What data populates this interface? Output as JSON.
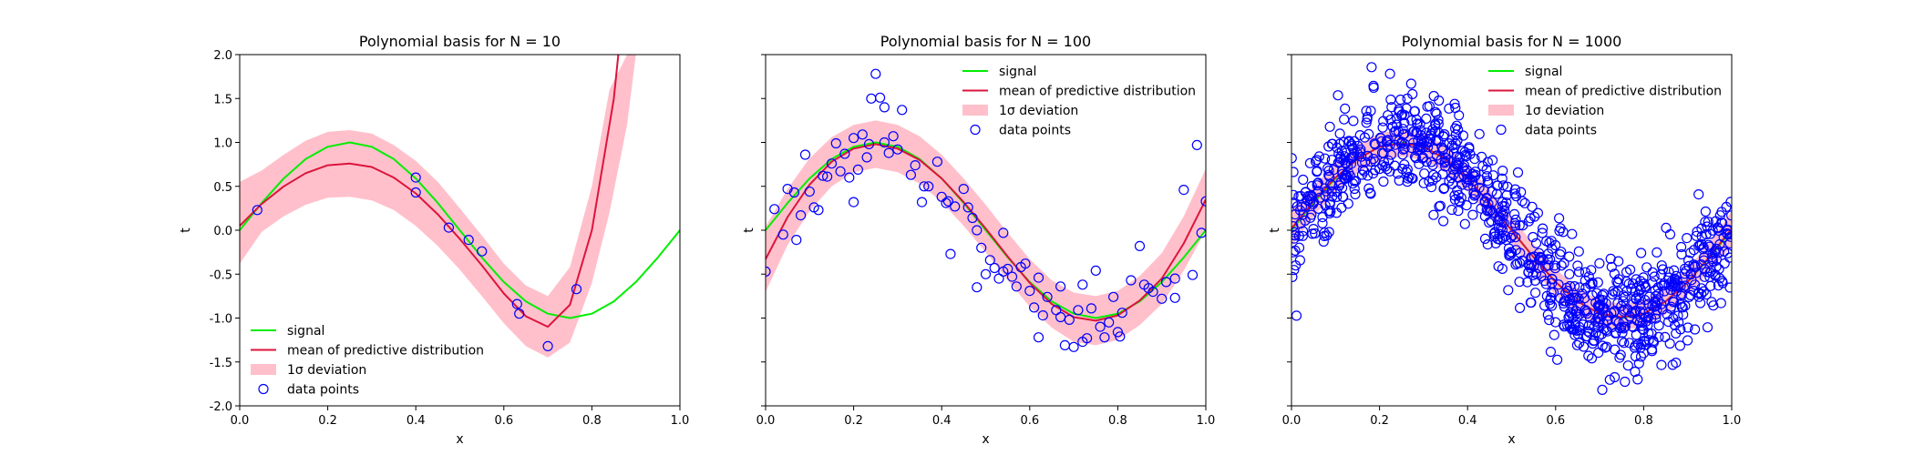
{
  "colors": {
    "signal": "#00ee00",
    "mean": "#dc143c",
    "deviation": "#ffc0cb",
    "points": "#0000ff",
    "axes": "#000000"
  },
  "chart_data": [
    {
      "type": "line",
      "title": "Polynomial basis for N = 10",
      "xlabel": "x",
      "ylabel": "t",
      "xlim": [
        0.0,
        1.0
      ],
      "ylim": [
        -2.0,
        2.0
      ],
      "xticks": [
        "0.0",
        "0.2",
        "0.4",
        "0.6",
        "0.8",
        "1.0"
      ],
      "yticks": [
        "-2.0",
        "-1.5",
        "-1.0",
        "-0.5",
        "0.0",
        "0.5",
        "1.0",
        "1.5",
        "2.0"
      ],
      "show_ytick_labels": true,
      "legend_position": "lower-left",
      "legend": [
        "signal",
        "mean of predictive distribution",
        "1σ deviation",
        "data points"
      ],
      "series": [
        {
          "name": "signal",
          "kind": "line",
          "color": "#00ee00",
          "x": [
            0.0,
            0.05,
            0.1,
            0.15,
            0.2,
            0.25,
            0.3,
            0.35,
            0.4,
            0.45,
            0.5,
            0.55,
            0.6,
            0.65,
            0.7,
            0.75,
            0.8,
            0.85,
            0.9,
            0.95,
            1.0
          ],
          "y": [
            0.0,
            0.31,
            0.59,
            0.81,
            0.95,
            1.0,
            0.95,
            0.81,
            0.59,
            0.31,
            0.0,
            -0.31,
            -0.59,
            -0.81,
            -0.95,
            -1.0,
            -0.95,
            -0.81,
            -0.59,
            -0.31,
            0.0
          ]
        },
        {
          "name": "mean of predictive distribution",
          "kind": "line",
          "color": "#dc143c",
          "x": [
            0.0,
            0.05,
            0.1,
            0.15,
            0.2,
            0.25,
            0.3,
            0.35,
            0.4,
            0.45,
            0.5,
            0.55,
            0.6,
            0.65,
            0.7,
            0.75,
            0.8,
            0.85,
            0.86
          ],
          "y": [
            0.05,
            0.3,
            0.5,
            0.65,
            0.74,
            0.76,
            0.72,
            0.6,
            0.42,
            0.18,
            -0.1,
            -0.4,
            -0.72,
            -0.98,
            -1.1,
            -0.85,
            0.0,
            1.5,
            2.0
          ]
        },
        {
          "name": "1σ deviation",
          "kind": "band",
          "color": "#ffc0cb",
          "x": [
            0.0,
            0.05,
            0.1,
            0.15,
            0.2,
            0.25,
            0.3,
            0.35,
            0.4,
            0.45,
            0.5,
            0.55,
            0.6,
            0.65,
            0.7,
            0.75,
            0.8,
            0.84,
            0.88,
            0.9,
            0.94
          ],
          "lower": [
            -0.38,
            -0.02,
            0.16,
            0.29,
            0.37,
            0.38,
            0.34,
            0.23,
            0.05,
            -0.18,
            -0.45,
            -0.75,
            -1.06,
            -1.32,
            -1.45,
            -1.28,
            -0.6,
            0.2,
            1.2,
            2.0,
            2.0
          ],
          "upper": [
            0.55,
            0.68,
            0.86,
            1.02,
            1.12,
            1.14,
            1.1,
            0.97,
            0.79,
            0.55,
            0.25,
            -0.06,
            -0.38,
            -0.63,
            -0.75,
            -0.42,
            0.5,
            1.6,
            2.0,
            2.0,
            2.0
          ]
        },
        {
          "name": "data points",
          "kind": "scatter",
          "color": "#0000ff",
          "x": [
            0.04,
            0.4,
            0.4,
            0.475,
            0.52,
            0.55,
            0.63,
            0.635,
            0.7,
            0.765
          ],
          "y": [
            0.23,
            0.6,
            0.43,
            0.03,
            -0.11,
            -0.24,
            -0.84,
            -0.95,
            -1.32,
            -0.67
          ]
        }
      ]
    },
    {
      "type": "line",
      "title": "Polynomial basis for N = 100",
      "xlabel": "x",
      "ylabel": "t",
      "xlim": [
        0.0,
        1.0
      ],
      "ylim": [
        -2.0,
        2.0
      ],
      "xticks": [
        "0.0",
        "0.2",
        "0.4",
        "0.6",
        "0.8",
        "1.0"
      ],
      "yticks": [
        "-2.0",
        "-1.5",
        "-1.0",
        "-0.5",
        "0.0",
        "0.5",
        "1.0",
        "1.5",
        "2.0"
      ],
      "show_ytick_labels": false,
      "legend_position": "upper-right",
      "legend": [
        "signal",
        "mean of predictive distribution",
        "1σ deviation",
        "data points"
      ],
      "series": [
        {
          "name": "signal",
          "kind": "line",
          "color": "#00ee00",
          "x": [
            0.0,
            0.05,
            0.1,
            0.15,
            0.2,
            0.25,
            0.3,
            0.35,
            0.4,
            0.45,
            0.5,
            0.55,
            0.6,
            0.65,
            0.7,
            0.75,
            0.8,
            0.85,
            0.9,
            0.95,
            1.0
          ],
          "y": [
            0.0,
            0.31,
            0.59,
            0.81,
            0.95,
            1.0,
            0.95,
            0.81,
            0.59,
            0.31,
            0.0,
            -0.31,
            -0.59,
            -0.81,
            -0.95,
            -1.0,
            -0.95,
            -0.81,
            -0.59,
            -0.31,
            0.0
          ]
        },
        {
          "name": "mean of predictive distribution",
          "kind": "line",
          "color": "#dc143c",
          "x": [
            0.0,
            0.05,
            0.1,
            0.15,
            0.2,
            0.25,
            0.3,
            0.35,
            0.4,
            0.45,
            0.5,
            0.55,
            0.6,
            0.65,
            0.7,
            0.75,
            0.8,
            0.85,
            0.9,
            0.95,
            1.0
          ],
          "y": [
            -0.33,
            0.15,
            0.52,
            0.78,
            0.93,
            0.98,
            0.93,
            0.8,
            0.59,
            0.32,
            0.02,
            -0.3,
            -0.6,
            -0.84,
            -0.99,
            -1.03,
            -0.97,
            -0.8,
            -0.55,
            -0.15,
            0.35
          ]
        },
        {
          "name": "1σ deviation",
          "kind": "band",
          "color": "#ffc0cb",
          "x": [
            0.0,
            0.05,
            0.1,
            0.15,
            0.2,
            0.25,
            0.3,
            0.35,
            0.4,
            0.45,
            0.5,
            0.55,
            0.6,
            0.65,
            0.7,
            0.75,
            0.8,
            0.85,
            0.9,
            0.95,
            1.0
          ],
          "lower": [
            -0.7,
            -0.17,
            0.22,
            0.5,
            0.66,
            0.71,
            0.66,
            0.53,
            0.32,
            0.05,
            -0.25,
            -0.57,
            -0.87,
            -1.11,
            -1.27,
            -1.31,
            -1.25,
            -1.08,
            -0.84,
            -0.46,
            0.0
          ],
          "upper": [
            0.04,
            0.47,
            0.82,
            1.06,
            1.2,
            1.25,
            1.2,
            1.07,
            0.86,
            0.59,
            0.29,
            -0.03,
            -0.33,
            -0.57,
            -0.71,
            -0.75,
            -0.69,
            -0.52,
            -0.26,
            0.16,
            0.7
          ]
        },
        {
          "name": "data points",
          "kind": "scatter",
          "color": "#0000ff",
          "x": [
            0.0,
            0.02,
            0.04,
            0.05,
            0.07,
            0.08,
            0.09,
            0.1,
            0.12,
            0.13,
            0.14,
            0.15,
            0.16,
            0.17,
            0.18,
            0.19,
            0.2,
            0.2,
            0.21,
            0.22,
            0.23,
            0.24,
            0.25,
            0.26,
            0.27,
            0.27,
            0.28,
            0.29,
            0.3,
            0.31,
            0.33,
            0.34,
            0.36,
            0.37,
            0.39,
            0.4,
            0.41,
            0.42,
            0.43,
            0.45,
            0.46,
            0.47,
            0.48,
            0.49,
            0.5,
            0.51,
            0.52,
            0.53,
            0.54,
            0.55,
            0.56,
            0.57,
            0.58,
            0.59,
            0.6,
            0.61,
            0.62,
            0.63,
            0.64,
            0.66,
            0.67,
            0.68,
            0.69,
            0.7,
            0.71,
            0.72,
            0.73,
            0.74,
            0.75,
            0.76,
            0.77,
            0.78,
            0.79,
            0.8,
            0.81,
            0.83,
            0.85,
            0.86,
            0.87,
            0.88,
            0.9,
            0.91,
            0.93,
            0.95,
            0.97,
            0.98,
            0.99,
            1.0,
            0.415,
            0.62,
            0.48,
            0.72,
            0.11,
            0.235,
            0.355,
            0.54,
            0.67,
            0.805,
            0.93,
            0.065
          ],
          "y": [
            -0.47,
            0.24,
            -0.05,
            0.47,
            -0.11,
            0.17,
            0.86,
            0.44,
            0.23,
            0.62,
            0.61,
            0.76,
            0.99,
            0.67,
            0.87,
            0.6,
            0.32,
            1.05,
            0.69,
            1.09,
            0.83,
            1.5,
            1.78,
            1.51,
            1.4,
            1.0,
            0.88,
            1.07,
            0.92,
            1.37,
            0.63,
            0.74,
            0.5,
            0.5,
            0.78,
            0.38,
            0.31,
            -0.27,
            0.27,
            0.47,
            0.26,
            0.14,
            0.0,
            -0.2,
            -0.5,
            -0.34,
            -0.43,
            -0.55,
            -0.03,
            -0.44,
            -0.53,
            -0.64,
            -0.42,
            -0.38,
            -0.69,
            -0.88,
            -0.54,
            -0.97,
            -0.76,
            -0.91,
            -0.64,
            -1.31,
            -1.02,
            -1.33,
            -0.91,
            -0.62,
            -1.23,
            -0.89,
            -0.46,
            -1.1,
            -1.22,
            -1.05,
            -0.76,
            -1.16,
            -0.94,
            -0.57,
            -0.18,
            -0.62,
            -0.66,
            -0.7,
            -0.78,
            -0.59,
            -0.55,
            0.46,
            -0.51,
            0.97,
            -0.03,
            0.33,
            0.33,
            -1.22,
            -0.65,
            -1.27,
            0.26,
            0.98,
            0.32,
            -0.47,
            -0.99,
            -1.21,
            -0.77,
            0.43
          ]
        }
      ]
    },
    {
      "type": "line",
      "title": "Polynomial basis for N = 1000",
      "xlabel": "x",
      "ylabel": "t",
      "xlim": [
        0.0,
        1.0
      ],
      "ylim": [
        -2.0,
        2.0
      ],
      "xticks": [
        "0.0",
        "0.2",
        "0.4",
        "0.6",
        "0.8",
        "1.0"
      ],
      "yticks": [
        "-2.0",
        "-1.5",
        "-1.0",
        "-0.5",
        "0.0",
        "0.5",
        "1.0",
        "1.5",
        "2.0"
      ],
      "show_ytick_labels": false,
      "legend_position": "upper-right",
      "legend": [
        "signal",
        "mean of predictive distribution",
        "1σ deviation",
        "data points"
      ],
      "series": [
        {
          "name": "signal",
          "kind": "line",
          "color": "#00ee00",
          "x": [
            0.0,
            0.05,
            0.1,
            0.15,
            0.2,
            0.25,
            0.3,
            0.35,
            0.4,
            0.45,
            0.5,
            0.55,
            0.6,
            0.65,
            0.7,
            0.75,
            0.8,
            0.85,
            0.9,
            0.95,
            1.0
          ],
          "y": [
            0.0,
            0.31,
            0.59,
            0.81,
            0.95,
            1.0,
            0.95,
            0.81,
            0.59,
            0.31,
            0.0,
            -0.31,
            -0.59,
            -0.81,
            -0.95,
            -1.0,
            -0.95,
            -0.81,
            -0.59,
            -0.31,
            0.0
          ]
        },
        {
          "name": "mean of predictive distribution",
          "kind": "line",
          "color": "#dc143c",
          "x": [
            0.0,
            0.05,
            0.1,
            0.15,
            0.2,
            0.25,
            0.3,
            0.35,
            0.4,
            0.45,
            0.5,
            0.55,
            0.6,
            0.65,
            0.7,
            0.75,
            0.8,
            0.85,
            0.9,
            0.95,
            1.0
          ],
          "y": [
            0.02,
            0.33,
            0.6,
            0.81,
            0.95,
            0.99,
            0.95,
            0.81,
            0.59,
            0.31,
            0.0,
            -0.31,
            -0.59,
            -0.81,
            -0.95,
            -0.99,
            -0.95,
            -0.81,
            -0.59,
            -0.3,
            0.02
          ]
        },
        {
          "name": "1σ deviation",
          "kind": "band",
          "color": "#ffc0cb",
          "x": [
            0.0,
            0.05,
            0.1,
            0.15,
            0.2,
            0.25,
            0.3,
            0.35,
            0.4,
            0.45,
            0.5,
            0.55,
            0.6,
            0.65,
            0.7,
            0.75,
            0.8,
            0.85,
            0.9,
            0.95,
            1.0
          ],
          "lower": [
            -0.18,
            0.16,
            0.44,
            0.65,
            0.79,
            0.84,
            0.8,
            0.66,
            0.44,
            0.16,
            -0.15,
            -0.46,
            -0.74,
            -0.96,
            -1.1,
            -1.14,
            -1.1,
            -0.96,
            -0.74,
            -0.46,
            -0.18
          ],
          "upper": [
            0.22,
            0.5,
            0.76,
            0.97,
            1.11,
            1.14,
            1.1,
            0.96,
            0.74,
            0.46,
            0.15,
            -0.16,
            -0.44,
            -0.66,
            -0.8,
            -0.84,
            -0.8,
            -0.66,
            -0.44,
            -0.14,
            0.22
          ]
        },
        {
          "name": "data points",
          "kind": "scatter",
          "color": "#0000ff",
          "generated_count": 1000,
          "noise_sigma": 0.3
        }
      ]
    }
  ]
}
